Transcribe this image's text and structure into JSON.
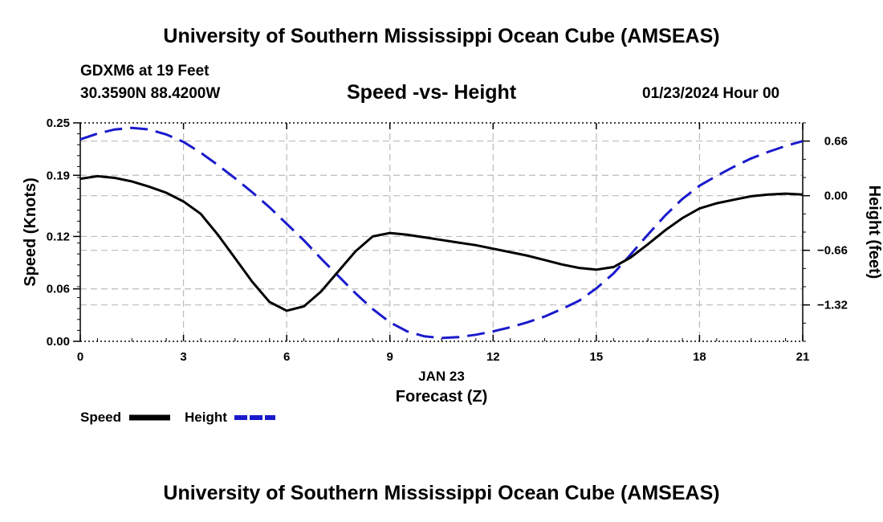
{
  "header": {
    "title": "University of Southern Mississippi Ocean Cube (AMSEAS)",
    "station": "GDXM6 at 19 Feet",
    "coords": "30.3590N  88.4200W",
    "date": "01/23/2024 Hour 00"
  },
  "footer": {
    "title": "University of Southern Mississippi Ocean Cube (AMSEAS)"
  },
  "colors": {
    "speed": "#000000",
    "height": "#1a1acc",
    "grid": "#bbbbbb"
  },
  "chart_data": {
    "type": "line",
    "title": "Speed -vs- Height",
    "xlabel": "Forecast (Z)",
    "xsublabel": "JAN 23",
    "ylabel": "Speed (Knots)",
    "y2label": "Height (feet)",
    "xlim": [
      0,
      21
    ],
    "ylim": [
      0,
      0.25
    ],
    "y2lim": [
      -1.76,
      0.88
    ],
    "xticks": [
      "0",
      "3",
      "6",
      "9",
      "12",
      "15",
      "18",
      "21"
    ],
    "yticks": [
      "0.00",
      "0.06",
      "0.12",
      "0.19",
      "0.25"
    ],
    "y2ticks": [
      "−1.32",
      "−0.66",
      "0.00",
      "0.66"
    ],
    "legend": {
      "position": "bottom-left",
      "speed_label": "Speed",
      "height_label": "Height"
    },
    "series": [
      {
        "name": "Speed",
        "axis": "left",
        "style": "solid",
        "x": [
          0,
          0.5,
          1,
          1.5,
          2,
          2.5,
          3,
          3.5,
          4,
          4.5,
          5,
          5.5,
          6,
          6.5,
          7,
          7.5,
          8,
          8.5,
          9,
          9.5,
          10,
          10.5,
          11,
          11.5,
          12,
          12.5,
          13,
          13.5,
          14,
          14.5,
          15,
          15.5,
          16,
          16.5,
          17,
          17.5,
          18,
          18.5,
          19,
          19.5,
          20,
          20.5,
          21
        ],
        "values": [
          0.186,
          0.189,
          0.187,
          0.183,
          0.177,
          0.17,
          0.16,
          0.146,
          0.122,
          0.095,
          0.068,
          0.045,
          0.035,
          0.04,
          0.057,
          0.08,
          0.103,
          0.12,
          0.124,
          0.122,
          0.119,
          0.116,
          0.113,
          0.11,
          0.106,
          0.102,
          0.098,
          0.093,
          0.088,
          0.084,
          0.082,
          0.085,
          0.096,
          0.111,
          0.127,
          0.141,
          0.152,
          0.158,
          0.162,
          0.166,
          0.168,
          0.169,
          0.168
        ]
      },
      {
        "name": "Height",
        "axis": "right",
        "style": "dashed",
        "x": [
          0,
          0.5,
          1,
          1.5,
          2,
          2.5,
          3,
          3.5,
          4,
          4.5,
          5,
          5.5,
          6,
          6.5,
          7,
          7.5,
          8,
          8.5,
          9,
          9.5,
          10,
          10.5,
          11,
          11.5,
          12,
          12.5,
          13,
          13.5,
          14,
          14.5,
          15,
          15.5,
          16,
          16.5,
          17,
          17.5,
          18,
          18.5,
          19,
          19.5,
          20,
          20.5,
          21
        ],
        "values": [
          0.68,
          0.75,
          0.8,
          0.82,
          0.8,
          0.74,
          0.65,
          0.52,
          0.37,
          0.21,
          0.04,
          -0.14,
          -0.34,
          -0.54,
          -0.76,
          -0.97,
          -1.18,
          -1.37,
          -1.53,
          -1.64,
          -1.7,
          -1.72,
          -1.71,
          -1.68,
          -1.64,
          -1.59,
          -1.53,
          -1.46,
          -1.37,
          -1.27,
          -1.12,
          -0.94,
          -0.71,
          -0.47,
          -0.24,
          -0.04,
          0.12,
          0.24,
          0.35,
          0.45,
          0.53,
          0.6,
          0.66
        ]
      }
    ]
  }
}
